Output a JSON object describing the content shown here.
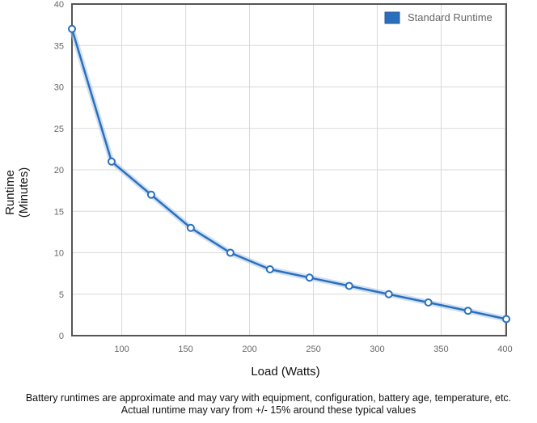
{
  "chart_data": {
    "type": "line",
    "xlabel": "Load (Watts)",
    "ylabel": "Runtime\n(Minutes)",
    "xlim": [
      61,
      401
    ],
    "ylim": [
      0,
      40
    ],
    "x_ticks": [
      100,
      150,
      200,
      250,
      300,
      350,
      400
    ],
    "y_ticks": [
      0,
      5,
      10,
      15,
      20,
      25,
      30,
      35,
      40
    ],
    "grid": true,
    "legend": "top-right",
    "series": [
      {
        "name": "Standard Runtime",
        "color": "#2a6fbd",
        "x": [
          61,
          92,
          123,
          154,
          185,
          216,
          247,
          278,
          309,
          340,
          371,
          401
        ],
        "y": [
          37,
          21,
          17,
          13,
          10,
          8,
          7,
          6,
          5,
          4,
          3,
          2
        ]
      }
    ]
  },
  "footnote": {
    "line1": "Battery runtimes are approximate and may vary with equipment, configuration, battery age, temperature, etc.",
    "line2": "Actual runtime may vary from +/- 15% around these typical values"
  }
}
